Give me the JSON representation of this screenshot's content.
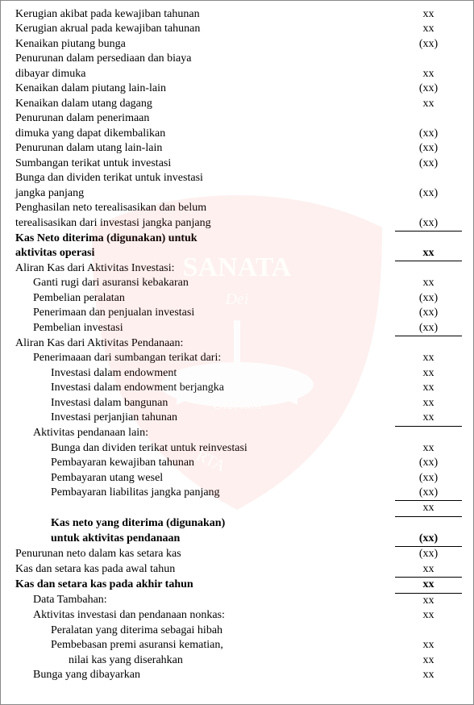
{
  "rows": [
    {
      "ind": 1,
      "label": "Kerugian akibat pada kewajiban tahunan",
      "val": "xx"
    },
    {
      "ind": 1,
      "label": "Kerugian akrual pada kewajiban tahunan",
      "val": "xx"
    },
    {
      "ind": 1,
      "label": "Kenaikan piutang bunga",
      "val": "(xx)"
    },
    {
      "ind": 1,
      "label": "Penurunan dalam persediaan dan biaya",
      "val": ""
    },
    {
      "ind": 1,
      "label": "dibayar dimuka",
      "val": "xx"
    },
    {
      "ind": 1,
      "label": "Kenaikan dalam piutang lain-lain",
      "val": "(xx)"
    },
    {
      "ind": 1,
      "label": "Kenaikan dalam utang dagang",
      "val": "xx"
    },
    {
      "ind": 1,
      "label": "Penurunan dalam penerimaan",
      "val": ""
    },
    {
      "ind": 1,
      "label": "dimuka yang dapat dikembalikan",
      "val": "(xx)"
    },
    {
      "ind": 1,
      "label": "Penurunan dalam utang lain-lain",
      "val": "(xx)"
    },
    {
      "ind": 1,
      "label": "Sumbangan terikat untuk investasi",
      "val": "(xx)"
    },
    {
      "ind": 1,
      "label": "Bunga dan dividen terikat untuk investasi",
      "val": ""
    },
    {
      "ind": 1,
      "label": "jangka panjang",
      "val": "(xx)"
    },
    {
      "ind": 1,
      "label": "Penghasilan neto terealisasikan dan belum",
      "val": ""
    },
    {
      "ind": 1,
      "label": "terealisasikan dari investasi jangka panjang",
      "val": "(xx)",
      "botLine": true
    },
    {
      "ind": 1,
      "label": "Kas Neto diterima (digunakan) untuk",
      "val": "",
      "bold": true
    },
    {
      "ind": 1,
      "label": "aktivitas operasi",
      "val": "xx",
      "bold": true,
      "botLine": true
    },
    {
      "ind": 1,
      "label": "Aliran Kas dari Aktivitas Investasi:",
      "val": ""
    },
    {
      "ind": 2,
      "label": "Ganti rugi dari asuransi kebakaran",
      "val": "xx"
    },
    {
      "ind": 2,
      "label": "Pembelian peralatan",
      "val": "(xx)"
    },
    {
      "ind": 2,
      "label": "Penerimaan dan penjualan investasi",
      "val": "(xx)"
    },
    {
      "ind": 2,
      "label": "Pembelian investasi",
      "val": "(xx)",
      "botLine": true
    },
    {
      "ind": 1,
      "label": "Aliran Kas dari Aktivitas Pendanaan:",
      "val": ""
    },
    {
      "ind": 2,
      "label": "Penerimaaan dari sumbangan terikat dari:",
      "val": "xx"
    },
    {
      "ind": 3,
      "label": "Investasi dalam endowment",
      "val": "xx"
    },
    {
      "ind": 3,
      "label": "Investasi dalam endowment berjangka",
      "val": "xx"
    },
    {
      "ind": 3,
      "label": "Investasi dalam bangunan",
      "val": "xx"
    },
    {
      "ind": 3,
      "label": "Investasi perjanjian tahunan",
      "val": "xx",
      "botLine": true
    },
    {
      "ind": 2,
      "label": "Aktivitas pendanaan lain:",
      "val": ""
    },
    {
      "ind": 3,
      "label": "Bunga dan dividen terikat untuk reinvestasi",
      "val": "xx"
    },
    {
      "ind": 3,
      "label": "Pembayaran kewajiban tahunan",
      "val": "(xx)"
    },
    {
      "ind": 3,
      "label": "Pembayaran utang wesel",
      "val": "(xx)"
    },
    {
      "ind": 3,
      "label": "Pembayaran liabilitas jangka panjang",
      "val": "(xx)",
      "botLine": true
    },
    {
      "ind": 3,
      "label": "",
      "val": "xx",
      "botLine": true
    },
    {
      "ind": 3,
      "label": "Kas neto yang diterima (digunakan)",
      "val": "",
      "bold": true
    },
    {
      "ind": 3,
      "label": "untuk aktivitas pendanaan",
      "val": "(xx)",
      "bold": true,
      "botLine": true
    },
    {
      "ind": 1,
      "label": "Penurunan neto dalam kas setara kas",
      "val": "(xx)"
    },
    {
      "ind": 1,
      "label": "Kas dan setara kas pada awal tahun",
      "val": "xx",
      "botLine": true
    },
    {
      "ind": 1,
      "label": "Kas dan setara kas pada akhir tahun",
      "val": "xx",
      "bold": true,
      "botLine": true
    },
    {
      "ind": 2,
      "label": "Data Tambahan:",
      "val": "xx"
    },
    {
      "ind": 2,
      "label": "Aktivitas investasi dan pendanaan nonkas:",
      "val": "xx"
    },
    {
      "ind": 3,
      "label": "Peralatan yang diterima sebagai hibah",
      "val": ""
    },
    {
      "ind": 3,
      "label": "Pembebasan premi asuransi kematian,",
      "val": "xx"
    },
    {
      "ind": 4,
      "label": "nilai kas yang diserahkan",
      "val": "xx"
    },
    {
      "ind": 2,
      "label": "Bunga yang dibayarkan",
      "val": "xx"
    }
  ]
}
